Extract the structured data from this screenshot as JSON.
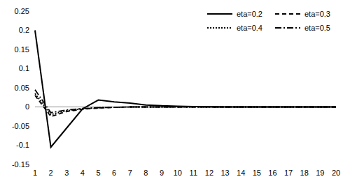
{
  "chart_data": {
    "type": "line",
    "categories": [
      1,
      2,
      3,
      4,
      5,
      6,
      7,
      8,
      9,
      10,
      11,
      12,
      13,
      14,
      15,
      16,
      17,
      18,
      19,
      20
    ],
    "series": [
      {
        "name": "eta=0.2",
        "color": "#000000",
        "line_style": "solid",
        "values": [
          0.2,
          -0.105,
          -0.055,
          -0.005,
          0.018,
          0.013,
          0.01,
          0.005,
          0.003,
          0.002,
          0.001,
          0.0005,
          0,
          0,
          0,
          0,
          0,
          0,
          0,
          0
        ]
      },
      {
        "name": "eta=0.3",
        "color": "#000000",
        "line_style": "dashed",
        "values": [
          0.03,
          -0.025,
          -0.012,
          -0.006,
          -0.003,
          -0.001,
          0,
          0,
          0,
          0,
          0,
          0,
          0,
          0,
          0,
          0,
          0,
          0,
          0,
          0
        ]
      },
      {
        "name": "eta=0.4",
        "color": "#000000",
        "line_style": "dotted",
        "values": [
          0.035,
          -0.02,
          -0.01,
          -0.005,
          -0.002,
          -0.001,
          0,
          0,
          0,
          0,
          0,
          0,
          0,
          0,
          0,
          0,
          0,
          0,
          0,
          0
        ]
      },
      {
        "name": "eta=0.5",
        "color": "#000000",
        "line_style": "dashdot",
        "values": [
          0.045,
          -0.015,
          -0.008,
          -0.004,
          -0.002,
          -0.001,
          0,
          0,
          0,
          0,
          0,
          0,
          0,
          0,
          0,
          0,
          0,
          0,
          0,
          0
        ]
      }
    ],
    "ylim": [
      -0.15,
      0.25
    ],
    "yticks": [
      -0.15,
      -0.1,
      -0.05,
      0,
      0.05,
      0.1,
      0.15,
      0.2,
      0.25
    ],
    "grid": false,
    "legend": "upper right"
  }
}
